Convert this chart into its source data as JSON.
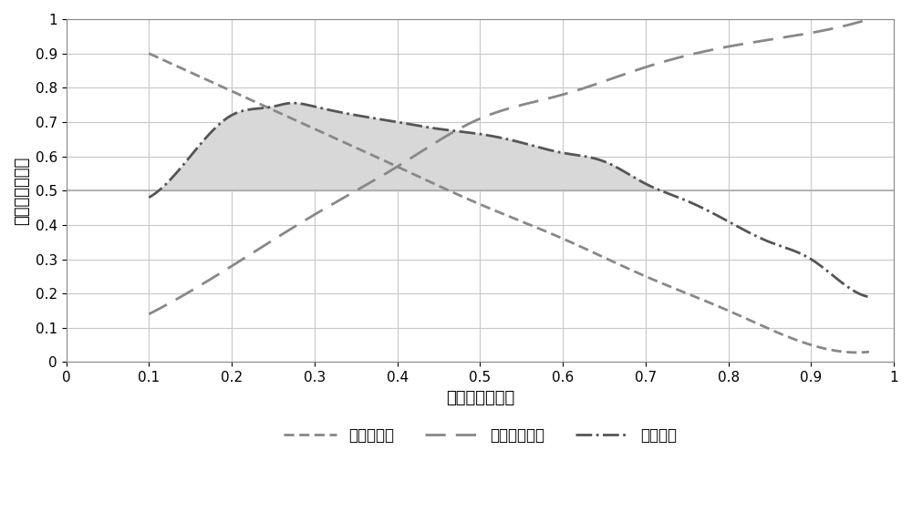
{
  "title": "",
  "xlabel": "泥质含量，小数",
  "ylabel": "破裂能力，小数",
  "xlim": [
    0,
    1.0
  ],
  "ylim": [
    0,
    1.0
  ],
  "xticks": [
    0,
    0.1,
    0.2,
    0.3,
    0.4,
    0.5,
    0.6,
    0.7,
    0.8,
    0.9,
    1.0
  ],
  "yticks": [
    0,
    0.1,
    0.2,
    0.3,
    0.4,
    0.5,
    0.6,
    0.7,
    0.8,
    0.9,
    1.0
  ],
  "background_color": "#ffffff",
  "grid_color": "#c8c8c8",
  "line_color": "#888888",
  "frac_line_color": "#555555",
  "hline_y": 0.5,
  "hline_color": "#aaaaaa",
  "tension_x": [
    0.1,
    0.2,
    0.3,
    0.4,
    0.5,
    0.6,
    0.7,
    0.8,
    0.9,
    0.97
  ],
  "tension_y": [
    0.9,
    0.79,
    0.68,
    0.57,
    0.46,
    0.36,
    0.25,
    0.15,
    0.05,
    0.03
  ],
  "shear_x": [
    0.1,
    0.2,
    0.3,
    0.4,
    0.5,
    0.6,
    0.7,
    0.8,
    0.9,
    0.97
  ],
  "shear_y": [
    0.14,
    0.28,
    0.43,
    0.57,
    0.71,
    0.78,
    0.86,
    0.92,
    0.96,
    1.0
  ],
  "frac_x": [
    0.1,
    0.15,
    0.2,
    0.25,
    0.27,
    0.3,
    0.35,
    0.4,
    0.45,
    0.5,
    0.55,
    0.6,
    0.65,
    0.7,
    0.75,
    0.8,
    0.85,
    0.9,
    0.95,
    0.97
  ],
  "frac_y": [
    0.48,
    0.6,
    0.72,
    0.745,
    0.755,
    0.745,
    0.72,
    0.7,
    0.68,
    0.665,
    0.64,
    0.61,
    0.585,
    0.52,
    0.47,
    0.41,
    0.35,
    0.3,
    0.21,
    0.19
  ],
  "shade_color": "#d8d8d8",
  "legend_labels": [
    "张破裂能力",
    "剪切破裂能力",
    "可压裂性"
  ],
  "font_size_label": 13,
  "font_size_tick": 11,
  "font_size_legend": 12
}
